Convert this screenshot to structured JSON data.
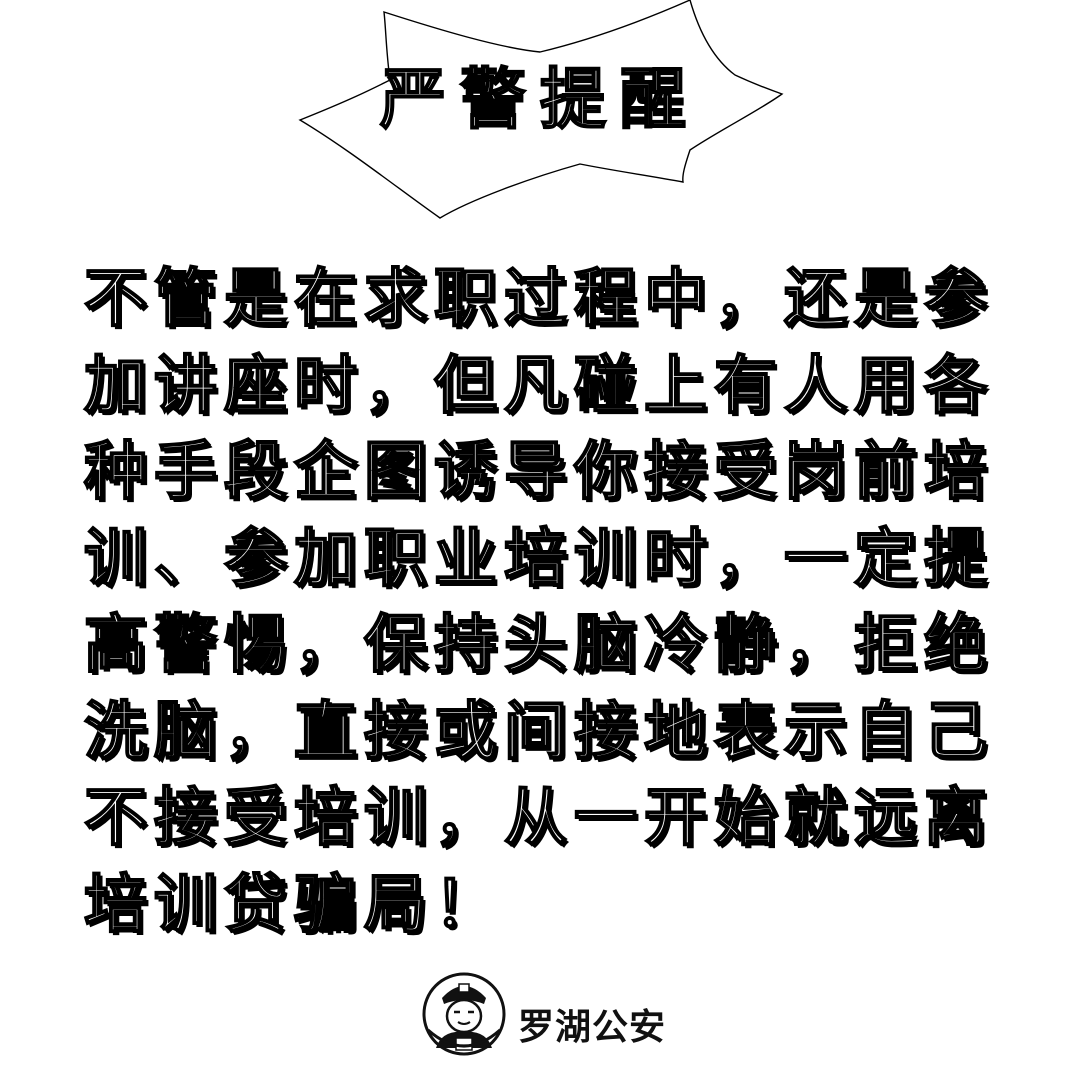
{
  "banner": {
    "title": "严警提醒"
  },
  "message": {
    "lines": [
      "不管是在求职过程中，还是参",
      "加讲座时，但凡碰上有人用各",
      "种手段企图诱导你接受岗前培",
      "训、参加职业培训时，一定提",
      "高警惕，保持头脑冷静，拒绝",
      "洗脑，直接或间接地表示自己",
      "不接受培训，从一开始就远离",
      "培训贷骗局！"
    ]
  },
  "footer": {
    "brand": "罗湖公安",
    "emblem_icon": "police-officer-cartoon-icon"
  },
  "colors": {
    "background": "#ffffff",
    "text_fill": "#ffffff",
    "text_outline": "#000000"
  }
}
